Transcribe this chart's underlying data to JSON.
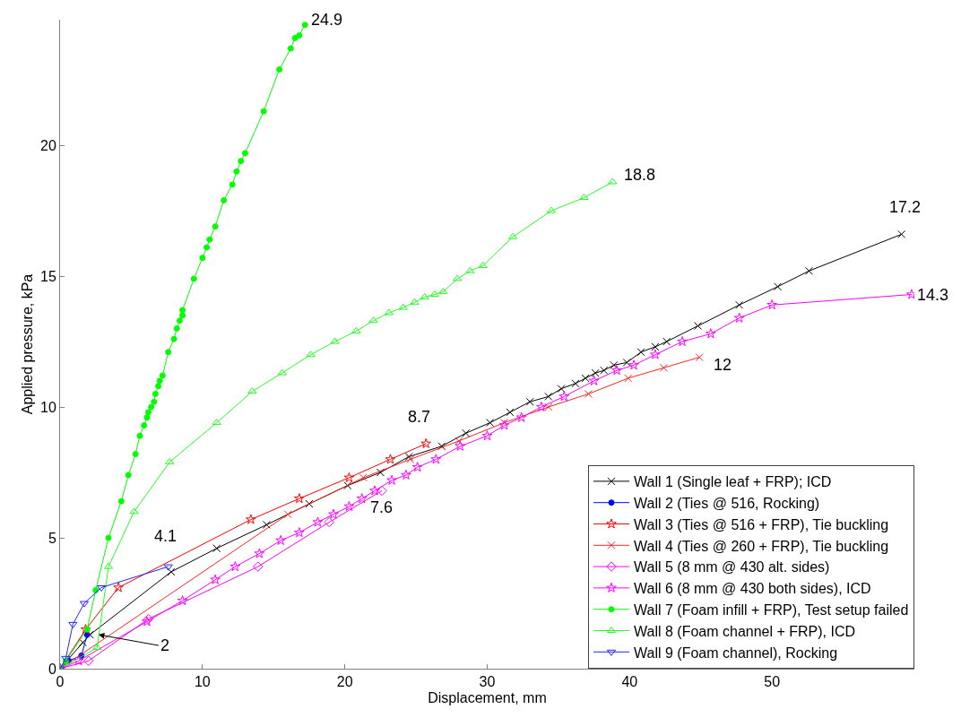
{
  "chart_data": {
    "type": "line",
    "xlabel": "Displacement, mm",
    "ylabel": "Applied pressure, kPa",
    "xlim": [
      0,
      60
    ],
    "ylim": [
      0,
      24.8
    ],
    "xticks": [
      0,
      10,
      20,
      30,
      40,
      50
    ],
    "yticks": [
      0,
      5,
      10,
      15,
      20
    ],
    "grid": false,
    "legend": "bottom right",
    "series": [
      {
        "name": "Wall 1 (Single leaf + FRP); ICD",
        "color": "#000000",
        "marker": "cross",
        "x": [
          0,
          1.6,
          2.1,
          7.8,
          11.0,
          14.5,
          17.5,
          20.2,
          22.5,
          24.5,
          26.8,
          28.5,
          30.2,
          31.6,
          33.0,
          34.3,
          35.2,
          36.2,
          36.9,
          37.6,
          38.2,
          38.9,
          39.8,
          40.8,
          41.8,
          42.6,
          44.8,
          47.7,
          50.4,
          52.6,
          59.1
        ],
        "values": [
          0,
          1.0,
          1.3,
          3.7,
          4.6,
          5.5,
          6.3,
          7.0,
          7.5,
          8.1,
          8.5,
          9.0,
          9.4,
          9.8,
          10.2,
          10.4,
          10.7,
          10.9,
          11.1,
          11.3,
          11.4,
          11.6,
          11.7,
          12.1,
          12.3,
          12.5,
          13.1,
          13.9,
          14.6,
          15.2,
          16.6
        ]
      },
      {
        "name": "Wall 2 (Ties @ 516, Rocking)",
        "color": "#0000ff",
        "marker": "circle",
        "x": [
          0,
          0.6,
          1.5,
          1.9
        ],
        "values": [
          0,
          0.3,
          0.5,
          1.3
        ]
      },
      {
        "name": "Wall 3 (Ties @ 516 + FRP), Tie buckling",
        "color": "#ff0000",
        "marker": "star",
        "x": [
          0,
          1.8,
          4.1,
          13.4,
          16.8,
          20.3,
          23.2,
          25.7
        ],
        "values": [
          0,
          1.5,
          3.1,
          5.7,
          6.5,
          7.3,
          8.0,
          8.6
        ]
      },
      {
        "name": "Wall 4 (Ties @ 260 + FRP), Tie buckling",
        "color": "#ff2424",
        "marker": "cross",
        "x": [
          0,
          16.0,
          21.3,
          24.6,
          28.0,
          31.2,
          34.3,
          37.1,
          39.9,
          42.4,
          44.9
        ],
        "values": [
          0,
          5.9,
          7.3,
          8.0,
          8.7,
          9.4,
          10.0,
          10.5,
          11.1,
          11.5,
          11.9
        ]
      },
      {
        "name": "Wall 5 (8 mm @ 430 alt. sides)",
        "color": "#ff00ff",
        "marker": "diamond",
        "x": [
          0,
          2.0,
          6.2,
          13.9,
          18.9,
          22.6
        ],
        "values": [
          0,
          0.3,
          1.9,
          3.9,
          5.6,
          6.8
        ]
      },
      {
        "name": "Wall 6 (8 mm @ 430 both sides), ICD",
        "color": "#ff00ff",
        "marker": "star",
        "x": [
          0,
          1.3,
          6.1,
          8.6,
          10.9,
          12.3,
          14.0,
          15.5,
          16.8,
          18.1,
          19.2,
          20.3,
          21.2,
          22.1,
          23.3,
          24.3,
          25.1,
          26.4,
          28.1,
          30.0,
          31.2,
          32.4,
          33.8,
          35.4,
          37.5,
          39.1,
          40.3,
          41.8,
          43.7,
          45.7,
          47.7,
          50.0,
          59.8
        ],
        "values": [
          0,
          0.3,
          1.8,
          2.6,
          3.4,
          3.9,
          4.4,
          4.9,
          5.2,
          5.6,
          5.9,
          6.2,
          6.5,
          6.8,
          7.2,
          7.4,
          7.7,
          8.0,
          8.5,
          8.9,
          9.3,
          9.6,
          10.0,
          10.4,
          11.0,
          11.4,
          11.6,
          12.0,
          12.5,
          12.8,
          13.4,
          13.9,
          14.3
        ]
      },
      {
        "name": "Wall 7 (Foam infill + FRP), Test setup failed",
        "color": "#00ff00",
        "marker": "circle",
        "x": [
          0,
          0.4,
          1.9,
          2.5,
          3.4,
          4.3,
          4.8,
          5.3,
          5.6,
          5.9,
          6.1,
          6.2,
          6.4,
          6.6,
          6.7,
          6.9,
          7.0,
          7.2,
          7.6,
          8.0,
          8.2,
          8.4,
          8.6,
          8.6,
          9.4,
          10.0,
          10.3,
          10.5,
          10.9,
          11.5,
          12.1,
          12.4,
          12.7,
          13.0,
          14.3,
          15.4,
          16.2,
          16.5,
          16.8,
          17.2
        ],
        "values": [
          0,
          0.3,
          1.5,
          3.0,
          5.0,
          6.4,
          7.4,
          8.2,
          8.9,
          9.3,
          9.6,
          9.8,
          10.0,
          10.2,
          10.5,
          10.8,
          11.0,
          11.2,
          12.1,
          12.6,
          13.0,
          13.3,
          13.5,
          13.7,
          14.9,
          15.7,
          16.1,
          16.4,
          16.9,
          17.9,
          18.5,
          19.0,
          19.4,
          19.7,
          21.3,
          22.9,
          23.7,
          24.1,
          24.2,
          24.6
        ]
      },
      {
        "name": "Wall 8 (Foam channel + FRP), ICD",
        "color": "#24ff24",
        "marker": "triangle",
        "x": [
          0,
          2.6,
          3.4,
          5.2,
          7.7,
          11.0,
          13.5,
          15.6,
          17.6,
          19.3,
          20.8,
          22.0,
          23.1,
          24.1,
          24.9,
          25.6,
          26.3,
          26.9,
          27.9,
          28.8,
          29.7,
          31.8,
          34.5,
          36.8,
          38.8
        ],
        "values": [
          0,
          0.8,
          3.9,
          6.0,
          7.9,
          9.4,
          10.6,
          11.3,
          12.0,
          12.5,
          12.9,
          13.3,
          13.6,
          13.8,
          14.0,
          14.2,
          14.3,
          14.4,
          14.9,
          15.2,
          15.4,
          16.5,
          17.5,
          18.0,
          18.6
        ]
      },
      {
        "name": "Wall 9 (Foam channel), Rocking",
        "color": "#2424ff",
        "marker": "triangle-down",
        "x": [
          0,
          0.4,
          0.9,
          1.7,
          2.9,
          7.6
        ],
        "values": [
          0,
          0.4,
          1.7,
          2.5,
          3.1,
          3.9
        ]
      }
    ],
    "annotations": [
      {
        "text": "24.9",
        "x": 17.2,
        "y": 24.6
      },
      {
        "text": "18.8",
        "x": 38.8,
        "y": 18.6
      },
      {
        "text": "17.2",
        "x": 59.1,
        "y": 16.6
      },
      {
        "text": "14.3",
        "x": 59.8,
        "y": 14.3
      },
      {
        "text": "12",
        "x": 44.9,
        "y": 11.9
      },
      {
        "text": "8.7",
        "x": 25.7,
        "y": 8.6
      },
      {
        "text": "7.6",
        "x": 22.6,
        "y": 6.8
      },
      {
        "text": "4.1",
        "x": 7.6,
        "y": 3.9
      },
      {
        "text": "2",
        "x": 2.7,
        "y": 1.3
      }
    ]
  }
}
